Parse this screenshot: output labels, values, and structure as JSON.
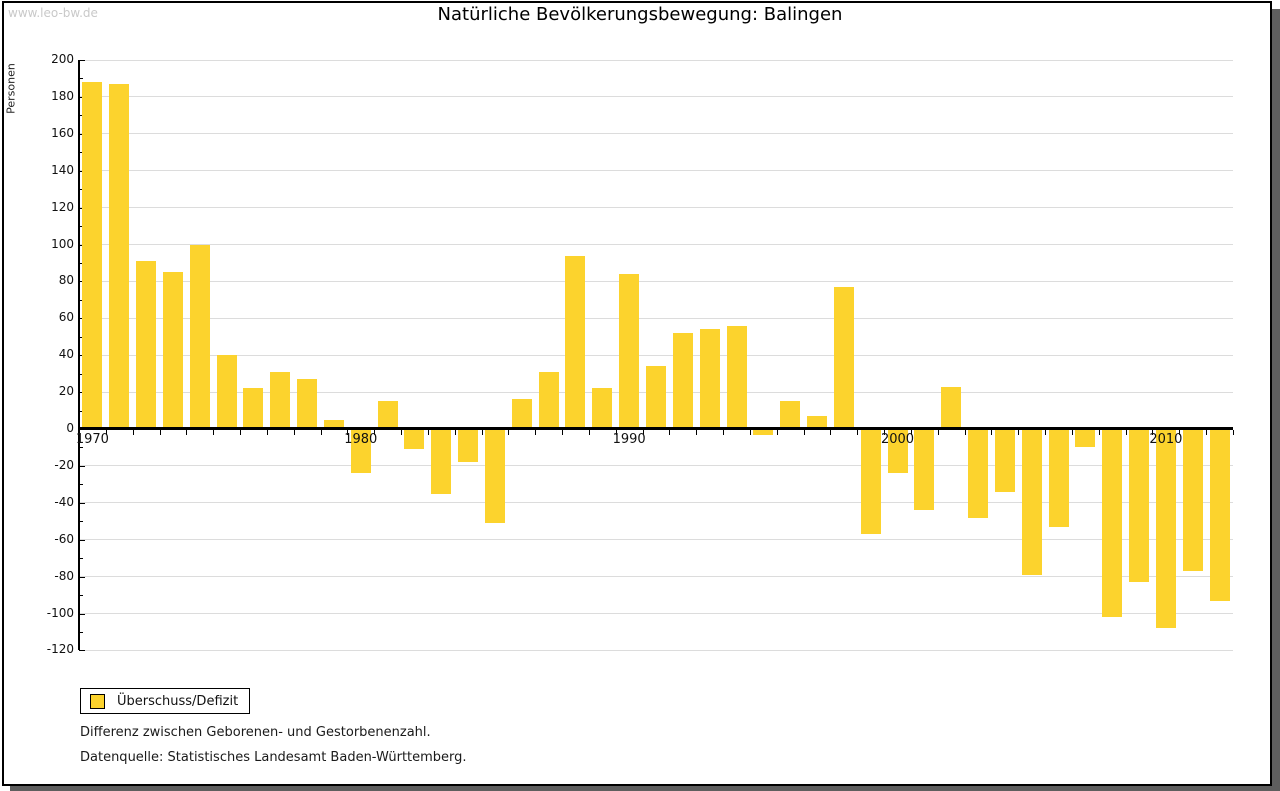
{
  "watermark": "www.leo-bw.de",
  "title": "Natürliche Bevölkerungsbewegung: Balingen",
  "chart_data": {
    "type": "bar",
    "title": "Natürliche Bevölkerungsbewegung: Balingen",
    "xlabel": "",
    "ylabel": "Personen",
    "ylim": [
      -120,
      200
    ],
    "ytick_major_step": 20,
    "ytick_minor_step": 10,
    "grid": true,
    "legend_position": "bottom-left",
    "bar_color": "#fcd32d",
    "categories": [
      1970,
      1971,
      1972,
      1973,
      1974,
      1975,
      1976,
      1977,
      1978,
      1979,
      1980,
      1981,
      1982,
      1983,
      1984,
      1985,
      1986,
      1987,
      1988,
      1989,
      1990,
      1991,
      1992,
      1993,
      1994,
      1995,
      1996,
      1997,
      1998,
      1999,
      2000,
      2001,
      2002,
      2003,
      2004,
      2005,
      2006,
      2007,
      2008,
      2009,
      2010,
      2011,
      2012
    ],
    "values": [
      188,
      187,
      91,
      85,
      100,
      40,
      22,
      31,
      27,
      5,
      -24,
      15,
      -11,
      -35,
      -18,
      -51,
      16,
      31,
      94,
      22,
      84,
      34,
      52,
      54,
      56,
      -3,
      15,
      7,
      77,
      -57,
      -24,
      -44,
      23,
      -48,
      -34,
      -79,
      -53,
      -10,
      -102,
      -83,
      -108,
      -77,
      -93
    ],
    "xtick_labels": [
      "1970",
      "1980",
      "1990",
      "2000",
      "2010"
    ]
  },
  "legend": {
    "label": "Überschuss/Defizit"
  },
  "footnotes": [
    "Differenz zwischen Geborenen- und Gestorbenenzahl.",
    "Datenquelle: Statistisches Landesamt Baden-Württemberg."
  ],
  "colors": {
    "bar": "#fcd32d",
    "gridline": "#dcdcdc",
    "axis": "#000000",
    "watermark": "#c9c9c9",
    "shadow": "#5e5e5e",
    "background": "#ffffff"
  }
}
